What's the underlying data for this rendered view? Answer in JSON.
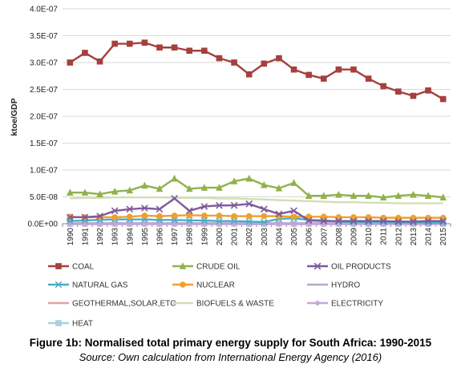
{
  "caption": {
    "title": "Figure 1b: Normalised total primary energy supply for South Africa: 1990-2015",
    "source": "Source: Own calculation from International Energy Agency (2016)"
  },
  "chart_data": {
    "type": "line",
    "ylabel": "ktoe/GDP",
    "ylim": [
      0,
      4e-07
    ],
    "y_ticks": [
      "0.0E+00",
      "5.0E-08",
      "1.0E-07",
      "1.5E-07",
      "2.0E-07",
      "2.5E-07",
      "3.0E-07",
      "3.5E-07",
      "4.0E-07"
    ],
    "categories": [
      "1990",
      "1991",
      "1992",
      "1993",
      "1994",
      "1995",
      "1996",
      "1997",
      "1998",
      "1999",
      "2000",
      "2001",
      "2002",
      "2003",
      "2004",
      "2005",
      "2006",
      "2007",
      "2008",
      "2009",
      "2010",
      "2011",
      "2012",
      "2013",
      "2014",
      "2015"
    ],
    "grid": "horizontal",
    "legend": "bottom",
    "series": [
      {
        "name": "COAL",
        "color": "#a5403d",
        "marker": "square",
        "values": [
          3e-07,
          3.18e-07,
          3.02e-07,
          3.35e-07,
          3.35e-07,
          3.37e-07,
          3.28e-07,
          3.28e-07,
          3.22e-07,
          3.22e-07,
          3.08e-07,
          3e-07,
          2.78e-07,
          2.98e-07,
          3.08e-07,
          2.87e-07,
          2.77e-07,
          2.7e-07,
          2.87e-07,
          2.87e-07,
          2.7e-07,
          2.56e-07,
          2.46e-07,
          2.38e-07,
          2.48e-07,
          2.32e-07
        ]
      },
      {
        "name": "CRUDE OIL",
        "color": "#8fb24b",
        "marker": "triangle",
        "values": [
          5.8e-08,
          5.8e-08,
          5.5e-08,
          6e-08,
          6.2e-08,
          7.1e-08,
          6.5e-08,
          8.4e-08,
          6.5e-08,
          6.7e-08,
          6.7e-08,
          7.9e-08,
          8.4e-08,
          7.2e-08,
          6.6e-08,
          7.6e-08,
          5.2e-08,
          5.2e-08,
          5.4e-08,
          5.2e-08,
          5.2e-08,
          4.9e-08,
          5.2e-08,
          5.4e-08,
          5.2e-08,
          4.9e-08
        ]
      },
      {
        "name": "OIL PRODUCTS",
        "color": "#7e5a9b",
        "marker": "x",
        "values": [
          1.2e-08,
          1.2e-08,
          1.4e-08,
          2.4e-08,
          2.7e-08,
          2.9e-08,
          2.7e-08,
          4.7e-08,
          2.4e-08,
          3.2e-08,
          3.4e-08,
          3.4e-08,
          3.7e-08,
          2.7e-08,
          1.8e-08,
          2.4e-08,
          6e-09,
          5e-09,
          5e-09,
          5e-09,
          5e-09,
          5e-09,
          4e-09,
          4e-09,
          5e-09,
          5e-09
        ]
      },
      {
        "name": "NATURAL GAS",
        "color": "#4bacc6",
        "marker": "star",
        "values": [
          5e-09,
          6e-09,
          7e-09,
          8e-09,
          8e-09,
          8e-09,
          7e-09,
          7e-09,
          6e-09,
          6e-09,
          5e-09,
          5e-09,
          4e-09,
          3e-09,
          9e-09,
          1e-08,
          7e-09,
          6e-09,
          4e-09,
          3e-09,
          3e-09,
          3e-09,
          2e-09,
          2e-09,
          2e-09,
          2e-09
        ]
      },
      {
        "name": "NUCLEAR",
        "color": "#f0a030",
        "marker": "circle",
        "values": [
          1.3e-08,
          1.2e-08,
          1.2e-08,
          1.2e-08,
          1.3e-08,
          1.5e-08,
          1.4e-08,
          1.5e-08,
          1.6e-08,
          1.5e-08,
          1.5e-08,
          1.4e-08,
          1.4e-08,
          1.4e-08,
          1.4e-08,
          1.3e-08,
          1.3e-08,
          1.3e-08,
          1.2e-08,
          1.2e-08,
          1.2e-08,
          1.1e-08,
          1.1e-08,
          1.1e-08,
          1.1e-08,
          1.1e-08
        ]
      },
      {
        "name": "HYDRO",
        "color": "#b7a7d0",
        "marker": "dash",
        "values": [
          1e-09,
          1e-09,
          1e-09,
          1e-09,
          1e-09,
          1e-09,
          1e-09,
          1e-09,
          1e-09,
          1e-09,
          1e-09,
          1e-09,
          1e-09,
          1e-09,
          1e-09,
          1e-09,
          1e-09,
          1e-09,
          1e-09,
          1e-09,
          1e-09,
          1e-09,
          1e-09,
          1e-09,
          1e-09,
          1e-09
        ]
      },
      {
        "name": "GEOTHERMAL,SOLAR,ETC",
        "color": "#e8a0a0",
        "marker": "none",
        "values": [
          0,
          0,
          0,
          0,
          0,
          0,
          0,
          0,
          0,
          0,
          0,
          0,
          0,
          0,
          0,
          0,
          0,
          0,
          0,
          0,
          0,
          0,
          0,
          0,
          0,
          0
        ]
      },
      {
        "name": "BIOFUELS & WASTE",
        "color": "#d2dfb4",
        "marker": "none",
        "values": [
          4.7e-08,
          4.8e-08,
          4.8e-08,
          4.9e-08,
          4.9e-08,
          4.9e-08,
          4.9e-08,
          4.8e-08,
          4.8e-08,
          4.8e-08,
          4.7e-08,
          4.7e-08,
          4.6e-08,
          4.5e-08,
          4.4e-08,
          4.3e-08,
          4.2e-08,
          4.1e-08,
          4e-08,
          4e-08,
          3.9e-08,
          3.9e-08,
          3.8e-08,
          3.8e-08,
          3.8e-08,
          3.8e-08
        ]
      },
      {
        "name": "ELECTRICITY",
        "color": "#c7a8d8",
        "marker": "diamond",
        "values": [
          -1e-09,
          -1e-09,
          -1e-09,
          -1e-09,
          -1e-09,
          -1e-09,
          -1e-09,
          -1e-09,
          -1e-09,
          -1e-09,
          -1e-09,
          -1e-09,
          -1e-09,
          -1e-09,
          -1e-09,
          -1e-09,
          -1e-09,
          -1e-09,
          -1e-09,
          -1e-09,
          -1e-09,
          -1e-09,
          -1e-09,
          -1e-09,
          -1e-09,
          -1e-09
        ]
      },
      {
        "name": "HEAT",
        "color": "#a9cfe3",
        "marker": "square",
        "values": [
          0,
          0,
          0,
          0,
          0,
          0,
          0,
          0,
          0,
          0,
          0,
          0,
          0,
          0,
          0,
          0,
          0,
          0,
          0,
          0,
          0,
          0,
          0,
          0,
          0,
          0
        ]
      }
    ]
  }
}
